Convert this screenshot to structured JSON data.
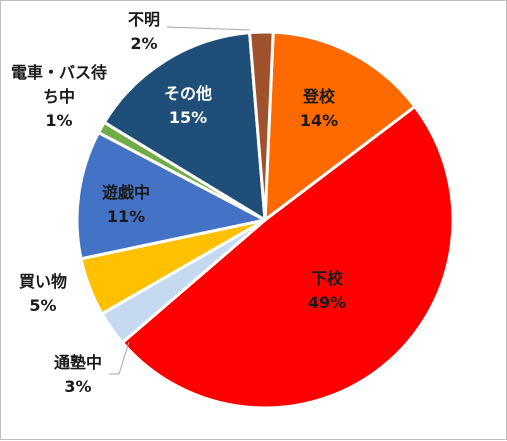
{
  "chart_data": {
    "type": "pie",
    "title": "",
    "categories": [
      "登校",
      "下校",
      "通塾中",
      "買い物",
      "遊戯中",
      "電車・バス待ち中",
      "その他",
      "不明"
    ],
    "values": [
      14,
      49,
      3,
      5,
      11,
      1,
      15,
      2
    ],
    "value_labels": [
      "14%",
      "49%",
      "3%",
      "5%",
      "11%",
      "1%",
      "15%",
      "2%"
    ],
    "colors": [
      "#ff6a00",
      "#ff0000",
      "#c5d9f1",
      "#ffc000",
      "#4472c4",
      "#70ad47",
      "#1f4e79",
      "#a0522d"
    ],
    "label_colors": [
      "#1a1a1a",
      "#1a1a1a",
      "#1a1a1a",
      "#1a1a1a",
      "#1a1a1a",
      "#1a1a1a",
      "#ffffff",
      "#1a1a1a"
    ],
    "legend": "none",
    "data_labels": "category-and-percent"
  }
}
